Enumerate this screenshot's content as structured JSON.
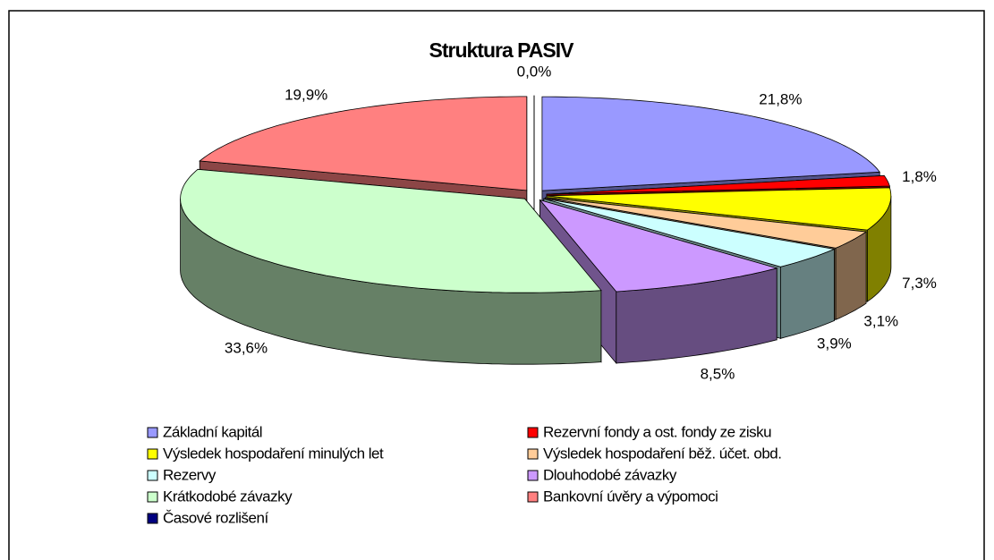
{
  "chart_data": {
    "type": "pie",
    "title": "Struktura PASIV",
    "categories": [
      "Základní kapitál",
      "Rezervní fondy a ost. fondy ze zisku",
      "Výsledek hospodaření minulých let",
      "Výsledek hospodaření běž. účet. obd.",
      "Rezervy",
      "Dlouhodobé závazky",
      "Krátkodobé závazky",
      "Bankovní úvěry a výpomoci",
      "Časové rozlišení"
    ],
    "values": [
      21.8,
      1.8,
      7.3,
      3.1,
      3.9,
      8.5,
      33.6,
      19.9,
      0.0
    ],
    "value_labels": [
      "21,8%",
      "1,8%",
      "7,3%",
      "3,1%",
      "3,9%",
      "8,5%",
      "33,6%",
      "19,9%",
      "0,0%"
    ],
    "colors": [
      "#9999ff",
      "#ff0000",
      "#ffff00",
      "#ffcc99",
      "#ccffff",
      "#cc99ff",
      "#ccffcc",
      "#ff8080",
      "#000080"
    ],
    "legend": "bottom"
  }
}
